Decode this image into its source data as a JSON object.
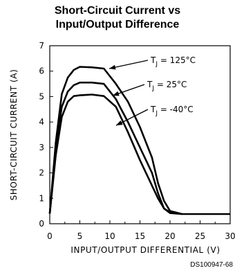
{
  "title_line1": "Short-Circuit Current vs",
  "title_line2": "Input/Output Difference",
  "figure_code": "DS100947-68",
  "chart_data": {
    "type": "line",
    "title": "Short-Circuit Current vs Input/Output Difference",
    "xlabel": "INPUT/OUTPUT DIFFERENTIAL (V)",
    "ylabel": "SHORT-CIRCUIT CURRENT (A)",
    "xlim": [
      0,
      30
    ],
    "ylim": [
      0,
      7
    ],
    "xticks": [
      "0",
      "5",
      "10",
      "15",
      "20",
      "25",
      "30"
    ],
    "yticks": [
      "0",
      "1",
      "2",
      "3",
      "4",
      "5",
      "6",
      "7"
    ],
    "grid": false,
    "series": [
      {
        "name": "TJ = 125°C",
        "points": [
          [
            0,
            0.4
          ],
          [
            1,
            3.2
          ],
          [
            2,
            5.1
          ],
          [
            3,
            5.75
          ],
          [
            4,
            6.05
          ],
          [
            5,
            6.17
          ],
          [
            7,
            6.15
          ],
          [
            9,
            6.1
          ],
          [
            11,
            5.5
          ],
          [
            13,
            4.8
          ],
          [
            15,
            3.8
          ],
          [
            16,
            3.2
          ],
          [
            17,
            2.6
          ],
          [
            18,
            1.6
          ],
          [
            19,
            0.9
          ],
          [
            20,
            0.5
          ],
          [
            22,
            0.38
          ],
          [
            30,
            0.38
          ]
        ]
      },
      {
        "name": "TJ = 25°C",
        "points": [
          [
            0,
            0.4
          ],
          [
            1,
            3.0
          ],
          [
            2,
            4.6
          ],
          [
            3,
            5.2
          ],
          [
            4,
            5.45
          ],
          [
            5,
            5.55
          ],
          [
            7,
            5.55
          ],
          [
            9,
            5.5
          ],
          [
            11,
            4.9
          ],
          [
            13,
            4.0
          ],
          [
            15,
            3.0
          ],
          [
            16,
            2.5
          ],
          [
            17,
            2.0
          ],
          [
            18,
            1.2
          ],
          [
            19,
            0.6
          ],
          [
            20,
            0.42
          ],
          [
            22,
            0.38
          ]
        ]
      },
      {
        "name": "TJ = -40°C",
        "points": [
          [
            0,
            0.4
          ],
          [
            1,
            2.7
          ],
          [
            2,
            4.2
          ],
          [
            3,
            4.8
          ],
          [
            4,
            5.02
          ],
          [
            5,
            5.05
          ],
          [
            7,
            5.08
          ],
          [
            9,
            5.02
          ],
          [
            11,
            4.6
          ],
          [
            13,
            3.6
          ],
          [
            15,
            2.5
          ],
          [
            16,
            2.0
          ],
          [
            17,
            1.5
          ],
          [
            18,
            1.0
          ],
          [
            19,
            0.6
          ],
          [
            20,
            0.45
          ],
          [
            22,
            0.38
          ]
        ]
      }
    ],
    "annotations": [
      {
        "text": "T",
        "sub": "J",
        "rest": " = 125°C",
        "series": 0
      },
      {
        "text": "T",
        "sub": "J",
        "rest": " = 25°C",
        "series": 1
      },
      {
        "text": "T",
        "sub": "J",
        "rest": " = -40°C",
        "series": 2
      }
    ]
  }
}
